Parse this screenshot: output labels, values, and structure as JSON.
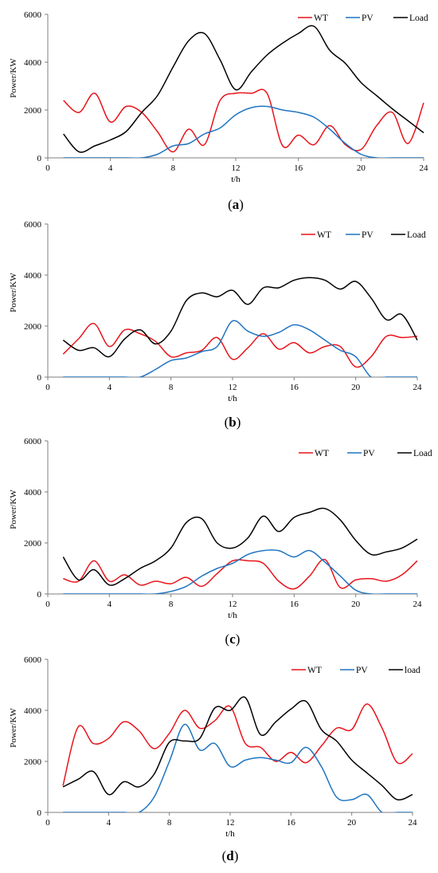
{
  "chart_data": [
    {
      "panel": "(a)",
      "caption_pre": "(",
      "caption_letter": "a",
      "caption_post": ")",
      "type": "line",
      "xlabel": "t/h",
      "ylabel": "Power/KW",
      "xlim": [
        0,
        24
      ],
      "ylim": [
        0,
        6000
      ],
      "xticks": [
        0,
        4,
        8,
        12,
        16,
        20,
        24
      ],
      "yticks": [
        0,
        2000,
        4000,
        6000
      ],
      "legend_position": "top-right",
      "series": [
        {
          "name": "WT",
          "color": "#e8141b",
          "x": [
            1,
            2,
            3,
            4,
            5,
            6,
            7,
            8,
            9,
            10,
            11,
            12,
            13,
            14,
            15,
            16,
            17,
            18,
            19,
            20,
            21,
            22,
            23,
            24
          ],
          "y": [
            2400,
            1900,
            2700,
            1500,
            2150,
            1900,
            1100,
            250,
            1200,
            550,
            2400,
            2700,
            2700,
            2700,
            500,
            950,
            550,
            1350,
            550,
            350,
            1350,
            1900,
            600,
            2300
          ]
        },
        {
          "name": "PV",
          "color": "#1f74c2",
          "x": [
            1,
            2,
            3,
            4,
            5,
            6,
            7,
            8,
            9,
            10,
            11,
            12,
            13,
            14,
            15,
            16,
            17,
            18,
            19,
            20,
            21,
            22,
            23,
            24
          ],
          "y": [
            0,
            0,
            0,
            0,
            0,
            0,
            150,
            500,
            600,
            1000,
            1250,
            1800,
            2100,
            2150,
            2000,
            1900,
            1700,
            1200,
            600,
            150,
            0,
            0,
            0,
            0
          ]
        },
        {
          "name": "Load",
          "color": "#000000",
          "x": [
            1,
            2,
            3,
            4,
            5,
            6,
            7,
            8,
            9,
            10,
            11,
            12,
            13,
            14,
            15,
            16,
            17,
            18,
            19,
            20,
            21,
            22,
            23,
            24
          ],
          "y": [
            1000,
            250,
            500,
            750,
            1100,
            1900,
            2600,
            3800,
            4900,
            5200,
            4100,
            2850,
            3600,
            4300,
            4800,
            5200,
            5500,
            4500,
            3950,
            3150,
            2600,
            2050,
            1550,
            1050
          ]
        }
      ]
    },
    {
      "panel": "(b)",
      "caption_pre": "(",
      "caption_letter": "b",
      "caption_post": ")",
      "type": "line",
      "xlabel": "t/h",
      "ylabel": "Power/KW",
      "xlim": [
        0,
        24
      ],
      "ylim": [
        0,
        6000
      ],
      "xticks": [
        0,
        4,
        8,
        12,
        16,
        20,
        24
      ],
      "yticks": [
        0,
        2000,
        4000,
        6000
      ],
      "legend_position": "top-right",
      "series": [
        {
          "name": "WT",
          "color": "#e8141b",
          "x": [
            1,
            2,
            3,
            4,
            5,
            6,
            7,
            8,
            9,
            10,
            11,
            12,
            13,
            14,
            15,
            16,
            17,
            18,
            19,
            20,
            21,
            22,
            23,
            24
          ],
          "y": [
            900,
            1500,
            2100,
            1200,
            1850,
            1700,
            1400,
            800,
            950,
            1050,
            1550,
            700,
            1150,
            1700,
            1100,
            1350,
            950,
            1200,
            1200,
            400,
            800,
            1600,
            1550,
            1600
          ]
        },
        {
          "name": "PV",
          "color": "#1f74c2",
          "x": [
            1,
            2,
            3,
            4,
            5,
            6,
            7,
            8,
            9,
            10,
            11,
            12,
            13,
            14,
            15,
            16,
            17,
            18,
            19,
            20,
            21,
            22,
            23,
            24
          ],
          "y": [
            0,
            0,
            0,
            0,
            0,
            0,
            300,
            650,
            750,
            1000,
            1200,
            2200,
            1800,
            1600,
            1750,
            2050,
            1850,
            1450,
            1050,
            800,
            0,
            0,
            0,
            0
          ]
        },
        {
          "name": "Load",
          "color": "#000000",
          "x": [
            1,
            2,
            3,
            4,
            5,
            6,
            7,
            8,
            9,
            10,
            11,
            12,
            13,
            14,
            15,
            16,
            17,
            18,
            19,
            20,
            21,
            22,
            23,
            24
          ],
          "y": [
            1450,
            1050,
            1150,
            800,
            1500,
            1850,
            1300,
            1800,
            3000,
            3300,
            3150,
            3400,
            2850,
            3500,
            3500,
            3800,
            3900,
            3800,
            3450,
            3750,
            3100,
            2250,
            2450,
            1450
          ]
        }
      ]
    },
    {
      "panel": "(c)",
      "caption_pre": "(",
      "caption_letter": "c",
      "caption_post": ")",
      "type": "line",
      "xlabel": "t/h",
      "ylabel": "Power/KW",
      "xlim": [
        0,
        24
      ],
      "ylim": [
        0,
        6000
      ],
      "xticks": [
        0,
        4,
        8,
        12,
        16,
        20,
        24
      ],
      "yticks": [
        0,
        2000,
        4000,
        6000
      ],
      "legend_position": "top-right",
      "series": [
        {
          "name": "WT",
          "color": "#e8141b",
          "x": [
            1,
            2,
            3,
            4,
            5,
            6,
            7,
            8,
            9,
            10,
            11,
            12,
            13,
            14,
            15,
            16,
            17,
            18,
            19,
            20,
            21,
            22,
            23,
            24
          ],
          "y": [
            600,
            500,
            1300,
            500,
            750,
            350,
            500,
            400,
            650,
            300,
            800,
            1300,
            1300,
            1200,
            500,
            200,
            700,
            1350,
            250,
            550,
            600,
            500,
            750,
            1300
          ]
        },
        {
          "name": "PV",
          "color": "#1f74c2",
          "x": [
            1,
            2,
            3,
            4,
            5,
            6,
            7,
            8,
            9,
            10,
            11,
            12,
            13,
            14,
            15,
            16,
            17,
            18,
            19,
            20,
            21,
            22,
            23,
            24
          ],
          "y": [
            0,
            0,
            0,
            0,
            0,
            0,
            0,
            100,
            300,
            700,
            1000,
            1200,
            1550,
            1700,
            1700,
            1450,
            1700,
            1250,
            700,
            150,
            0,
            0,
            0,
            0
          ]
        },
        {
          "name": "Load",
          "color": "#000000",
          "x": [
            1,
            2,
            3,
            4,
            5,
            6,
            7,
            8,
            9,
            10,
            11,
            12,
            13,
            14,
            15,
            16,
            17,
            18,
            19,
            20,
            21,
            22,
            23,
            24
          ],
          "y": [
            1450,
            550,
            950,
            350,
            600,
            1000,
            1300,
            1800,
            2800,
            2950,
            2000,
            1800,
            2200,
            3050,
            2450,
            3000,
            3200,
            3350,
            2900,
            2100,
            1550,
            1650,
            1800,
            2150
          ]
        }
      ]
    },
    {
      "panel": "(d)",
      "caption_pre": "(",
      "caption_letter": "d",
      "caption_post": ")",
      "type": "line",
      "xlabel": "t/h",
      "ylabel": "Power/KW",
      "xlim": [
        0,
        24
      ],
      "ylim": [
        0,
        6000
      ],
      "xticks": [
        0,
        4,
        8,
        12,
        16,
        20,
        24
      ],
      "yticks": [
        0,
        2000,
        4000,
        6000
      ],
      "legend_position": "top-right",
      "series": [
        {
          "name": "WT",
          "color": "#e8141b",
          "x": [
            1,
            2,
            3,
            4,
            5,
            6,
            7,
            8,
            9,
            10,
            11,
            12,
            13,
            14,
            15,
            16,
            17,
            18,
            19,
            20,
            21,
            22,
            23,
            24
          ],
          "y": [
            1050,
            3350,
            2700,
            2900,
            3550,
            3200,
            2500,
            3100,
            4000,
            3300,
            3600,
            4150,
            2700,
            2550,
            2000,
            2350,
            1950,
            2600,
            3300,
            3250,
            4250,
            3300,
            1950,
            2300
          ]
        },
        {
          "name": "PV",
          "color": "#1f74c2",
          "x": [
            1,
            2,
            3,
            4,
            5,
            6,
            7,
            8,
            9,
            10,
            11,
            12,
            13,
            14,
            15,
            16,
            17,
            18,
            19,
            20,
            21,
            22,
            23,
            24
          ],
          "y": [
            0,
            0,
            0,
            0,
            0,
            0,
            600,
            2000,
            3450,
            2450,
            2700,
            1800,
            2050,
            2150,
            2050,
            1950,
            2550,
            1800,
            600,
            500,
            700,
            0,
            0,
            0
          ]
        },
        {
          "name": "load",
          "color": "#000000",
          "x": [
            1,
            2,
            3,
            4,
            5,
            6,
            7,
            8,
            9,
            10,
            11,
            12,
            13,
            14,
            15,
            16,
            17,
            18,
            19,
            20,
            21,
            22,
            23,
            24
          ],
          "y": [
            1000,
            1300,
            1600,
            700,
            1200,
            1000,
            1500,
            2750,
            2800,
            2900,
            4100,
            4000,
            4500,
            3050,
            3550,
            4050,
            4350,
            3250,
            2800,
            2050,
            1550,
            1050,
            500,
            700
          ]
        }
      ]
    }
  ]
}
